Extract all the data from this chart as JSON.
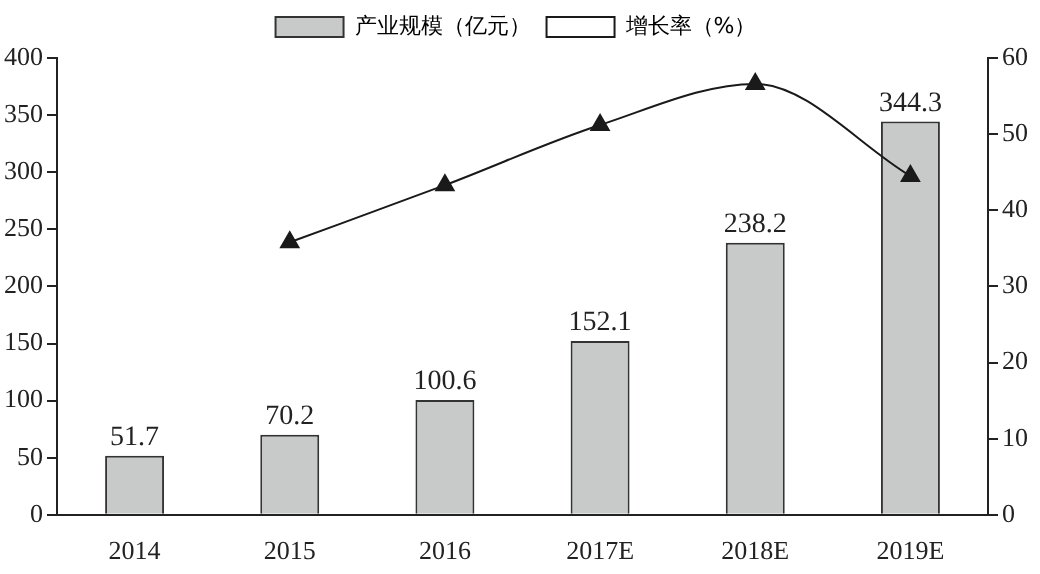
{
  "chart_data": {
    "type": "bar",
    "categories": [
      "2014",
      "2015",
      "2016",
      "2017E",
      "2018E",
      "2019E"
    ],
    "series": [
      {
        "name": "产业规模（亿元）",
        "color": "#c8c9c9",
        "values": [
          51.7,
          70.2,
          100.6,
          152.1,
          238.2,
          344.3
        ],
        "value_labels": [
          "51.7",
          "70.2",
          "100.6",
          "152.1",
          "238.2",
          "344.3"
        ]
      },
      {
        "name": "增长率（%）",
        "type": "line",
        "axis": "y2",
        "color": "#1a1a1a",
        "marker": "triangle",
        "values": [
          null,
          35.8,
          43.3,
          51.2,
          56.6,
          44.5
        ]
      }
    ],
    "ylim": [
      0,
      400
    ],
    "yticks": [
      0,
      50,
      100,
      150,
      200,
      250,
      300,
      350,
      400
    ],
    "y2lim": [
      0,
      60
    ],
    "y2ticks": [
      0,
      10,
      20,
      30,
      40,
      50,
      60
    ],
    "grid": false,
    "legend": "top"
  }
}
